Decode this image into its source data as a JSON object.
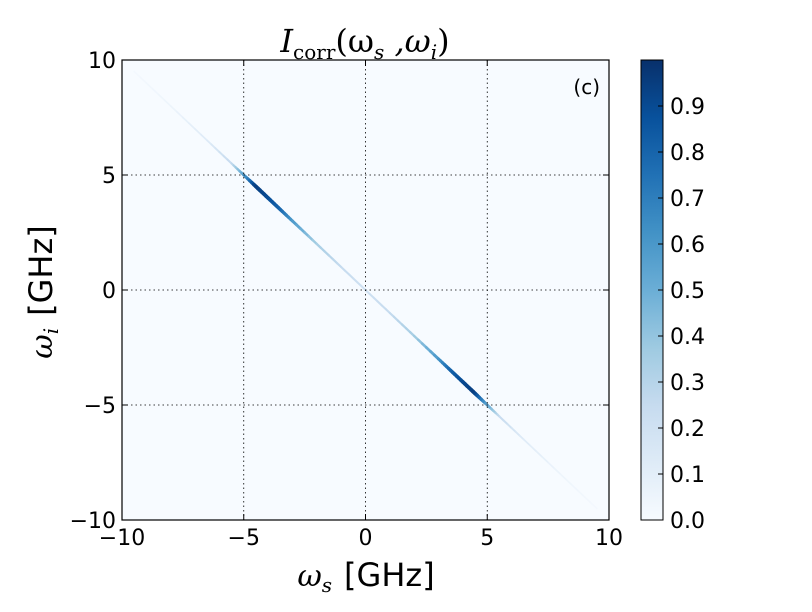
{
  "chart_data": {
    "type": "heatmap",
    "title": "I_corr(ω_s ,ω_i)",
    "title_parts": {
      "symbol": "I",
      "subscript": "corr",
      "args": "(ω",
      "s_sub": "s",
      "comma": " ,ω",
      "i_sub": "i",
      "close": ")"
    },
    "panel_label": "(c)",
    "xlabel": {
      "symbol": "ω",
      "sub": "s",
      "unit": "[GHz]"
    },
    "ylabel": {
      "symbol": "ω",
      "sub": "i",
      "unit": "[GHz]"
    },
    "xlim": [
      -10,
      10
    ],
    "ylim": [
      -10,
      10
    ],
    "xticks": [
      -10,
      -5,
      0,
      5,
      10
    ],
    "yticks": [
      -10,
      -5,
      0,
      5,
      10
    ],
    "xtick_labels": [
      "−10",
      "−5",
      "0",
      "5",
      "10"
    ],
    "ytick_labels": [
      "−10",
      "−5",
      "0",
      "5",
      "10"
    ],
    "grid": true,
    "colormap": "Blues",
    "colorbar": {
      "range": [
        0.0,
        1.0
      ],
      "ticks": [
        0.0,
        0.1,
        0.2,
        0.3,
        0.4,
        0.5,
        0.6,
        0.7,
        0.8,
        0.9
      ],
      "tick_labels": [
        "0.0",
        "0.1",
        "0.2",
        "0.3",
        "0.4",
        "0.5",
        "0.6",
        "0.7",
        "0.8",
        "0.9"
      ]
    },
    "ridge": {
      "description_line": "ω_i = −ω_s",
      "profile": [
        {
          "x": -9.5,
          "intensity": 0.02
        },
        {
          "x": -8.0,
          "intensity": 0.05
        },
        {
          "x": -6.5,
          "intensity": 0.12
        },
        {
          "x": -5.5,
          "intensity": 0.25
        },
        {
          "x": -5.0,
          "intensity": 0.55
        },
        {
          "x": -4.5,
          "intensity": 0.95
        },
        {
          "x": -4.0,
          "intensity": 0.9
        },
        {
          "x": -3.5,
          "intensity": 0.8
        },
        {
          "x": -3.0,
          "intensity": 0.6
        },
        {
          "x": -2.0,
          "intensity": 0.35
        },
        {
          "x": -1.0,
          "intensity": 0.25
        },
        {
          "x": 0.0,
          "intensity": 0.2
        },
        {
          "x": 1.0,
          "intensity": 0.25
        },
        {
          "x": 2.0,
          "intensity": 0.35
        },
        {
          "x": 3.0,
          "intensity": 0.6
        },
        {
          "x": 3.5,
          "intensity": 0.8
        },
        {
          "x": 4.0,
          "intensity": 0.9
        },
        {
          "x": 4.5,
          "intensity": 0.95
        },
        {
          "x": 5.0,
          "intensity": 0.55
        },
        {
          "x": 5.5,
          "intensity": 0.25
        },
        {
          "x": 6.5,
          "intensity": 0.12
        },
        {
          "x": 8.0,
          "intensity": 0.05
        },
        {
          "x": 9.5,
          "intensity": 0.02
        }
      ]
    }
  }
}
